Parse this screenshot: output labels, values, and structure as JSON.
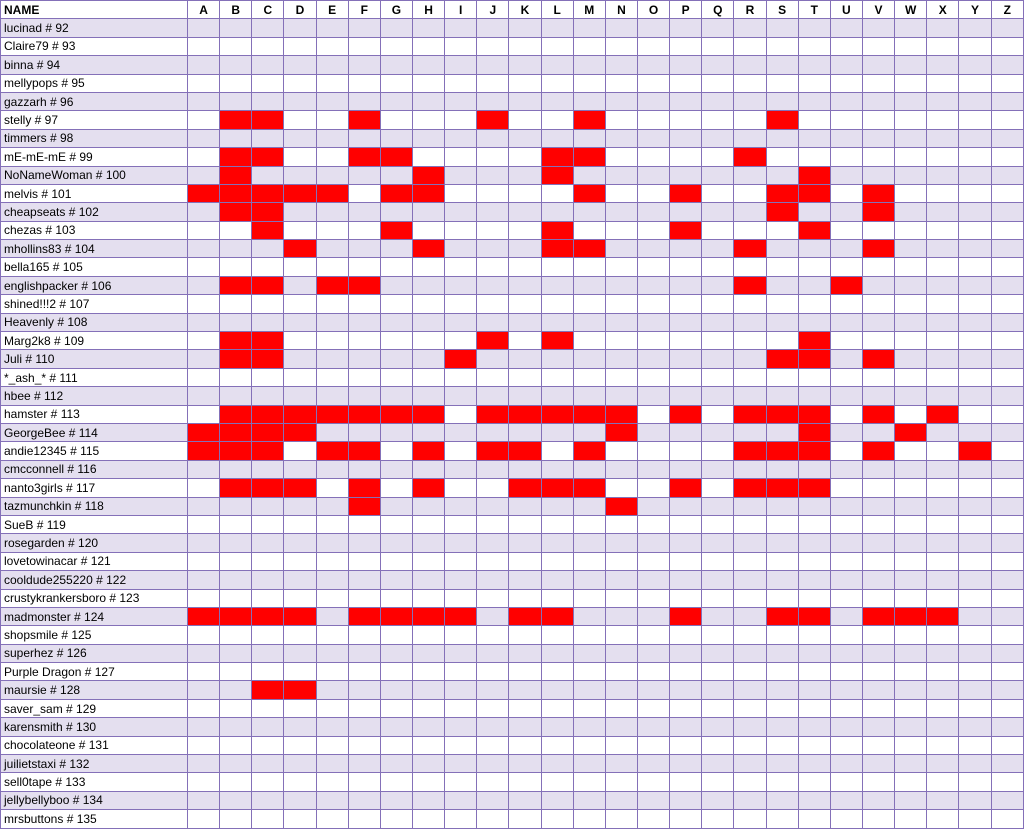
{
  "header": {
    "name_label": "NAME",
    "letters": [
      "A",
      "B",
      "C",
      "D",
      "E",
      "F",
      "G",
      "H",
      "I",
      "J",
      "K",
      "L",
      "M",
      "N",
      "O",
      "P",
      "Q",
      "R",
      "S",
      "T",
      "U",
      "V",
      "W",
      "X",
      "Y",
      "Z"
    ]
  },
  "colors": {
    "mark": "#ff0000",
    "band": "#e4dfef",
    "border": "#8470b8"
  },
  "rows": [
    {
      "name": "lucinad # 92",
      "marked": []
    },
    {
      "name": "Claire79 # 93",
      "marked": []
    },
    {
      "name": "binna # 94",
      "marked": []
    },
    {
      "name": "mellypops # 95",
      "marked": []
    },
    {
      "name": "gazzarh # 96",
      "marked": []
    },
    {
      "name": "stelly # 97",
      "marked": [
        "B",
        "C",
        "F",
        "J",
        "M",
        "S"
      ]
    },
    {
      "name": "timmers # 98",
      "marked": []
    },
    {
      "name": "mE-mE-mE # 99",
      "marked": [
        "B",
        "C",
        "F",
        "G",
        "L",
        "M",
        "R"
      ]
    },
    {
      "name": "NoNameWoman # 100",
      "marked": [
        "B",
        "H",
        "L",
        "T"
      ]
    },
    {
      "name": "melvis # 101",
      "marked": [
        "A",
        "B",
        "C",
        "D",
        "E",
        "G",
        "H",
        "M",
        "P",
        "S",
        "T",
        "V"
      ]
    },
    {
      "name": "cheapseats # 102",
      "marked": [
        "B",
        "C",
        "S",
        "V"
      ]
    },
    {
      "name": "chezas # 103",
      "marked": [
        "C",
        "G",
        "L",
        "P",
        "T"
      ]
    },
    {
      "name": "mhollins83 # 104",
      "marked": [
        "D",
        "H",
        "L",
        "M",
        "R",
        "V"
      ]
    },
    {
      "name": "bella165 # 105",
      "marked": []
    },
    {
      "name": "englishpacker # 106",
      "marked": [
        "B",
        "C",
        "E",
        "F",
        "R",
        "U"
      ]
    },
    {
      "name": "shined!!!2 # 107",
      "marked": []
    },
    {
      "name": "Heavenly # 108",
      "marked": []
    },
    {
      "name": "Marg2k8 # 109",
      "marked": [
        "B",
        "C",
        "J",
        "L",
        "T"
      ]
    },
    {
      "name": "Juli # 110",
      "marked": [
        "B",
        "C",
        "I",
        "S",
        "T",
        "V"
      ]
    },
    {
      "name": "*_ash_* # 111",
      "marked": []
    },
    {
      "name": "hbee # 112",
      "marked": []
    },
    {
      "name": "hamster # 113",
      "marked": [
        "B",
        "C",
        "D",
        "E",
        "F",
        "G",
        "H",
        "J",
        "K",
        "L",
        "M",
        "N",
        "P",
        "R",
        "S",
        "T",
        "V",
        "X"
      ]
    },
    {
      "name": "GeorgeBee # 114",
      "marked": [
        "A",
        "B",
        "C",
        "D",
        "N",
        "T",
        "W"
      ]
    },
    {
      "name": "andie12345 # 115",
      "marked": [
        "A",
        "B",
        "C",
        "E",
        "F",
        "H",
        "J",
        "K",
        "M",
        "R",
        "S",
        "T",
        "V",
        "Y"
      ]
    },
    {
      "name": "cmcconnell # 116",
      "marked": []
    },
    {
      "name": "nanto3girls # 117",
      "marked": [
        "B",
        "C",
        "D",
        "F",
        "H",
        "K",
        "L",
        "M",
        "P",
        "R",
        "S",
        "T"
      ]
    },
    {
      "name": "tazmunchkin # 118",
      "marked": [
        "F",
        "N"
      ]
    },
    {
      "name": "SueB # 119",
      "marked": []
    },
    {
      "name": "rosegarden # 120",
      "marked": []
    },
    {
      "name": "lovetowinacar # 121",
      "marked": []
    },
    {
      "name": "cooldude255220 # 122",
      "marked": []
    },
    {
      "name": "crustykrankersboro # 123",
      "marked": []
    },
    {
      "name": "madmonster # 124",
      "marked": [
        "A",
        "B",
        "C",
        "D",
        "F",
        "G",
        "H",
        "I",
        "K",
        "L",
        "P",
        "S",
        "T",
        "V",
        "W",
        "X"
      ]
    },
    {
      "name": "shopsmile # 125",
      "marked": []
    },
    {
      "name": "superhez # 126",
      "marked": []
    },
    {
      "name": "Purple Dragon # 127",
      "marked": []
    },
    {
      "name": "maursie # 128",
      "marked": [
        "C",
        "D"
      ]
    },
    {
      "name": "saver_sam # 129",
      "marked": []
    },
    {
      "name": "karensmith # 130",
      "marked": []
    },
    {
      "name": "chocolateone # 131",
      "marked": []
    },
    {
      "name": "juilietstaxi # 132",
      "marked": []
    },
    {
      "name": "sell0tape # 133",
      "marked": []
    },
    {
      "name": "jellybellyboo # 134",
      "marked": []
    },
    {
      "name": "mrsbuttons # 135",
      "marked": []
    }
  ]
}
